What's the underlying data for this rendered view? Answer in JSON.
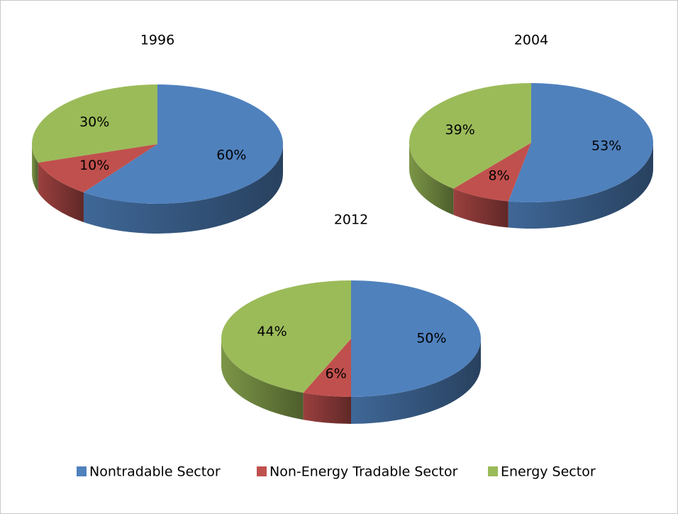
{
  "chart_data": [
    {
      "type": "pie",
      "title": "1996",
      "categories": [
        "Nontradable Sector",
        "Non-Energy Tradable Sector",
        "Energy Sector"
      ],
      "values": [
        60,
        10,
        30
      ],
      "value_labels": [
        "60%",
        "10%",
        "30%"
      ],
      "colors": [
        "#4f81bd",
        "#c0504d",
        "#9bbb59"
      ]
    },
    {
      "type": "pie",
      "title": "2004",
      "categories": [
        "Nontradable Sector",
        "Non-Energy Tradable Sector",
        "Energy Sector"
      ],
      "values": [
        53,
        8,
        39
      ],
      "value_labels": [
        "53%",
        "8%",
        "39%"
      ],
      "colors": [
        "#4f81bd",
        "#c0504d",
        "#9bbb59"
      ]
    },
    {
      "type": "pie",
      "title": "2012",
      "categories": [
        "Nontradable Sector",
        "Non-Energy Tradable Sector",
        "Energy Sector"
      ],
      "values": [
        50,
        6,
        44
      ],
      "value_labels": [
        "50%",
        "6%",
        "44%"
      ],
      "colors": [
        "#4f81bd",
        "#c0504d",
        "#9bbb59"
      ]
    }
  ]
}
